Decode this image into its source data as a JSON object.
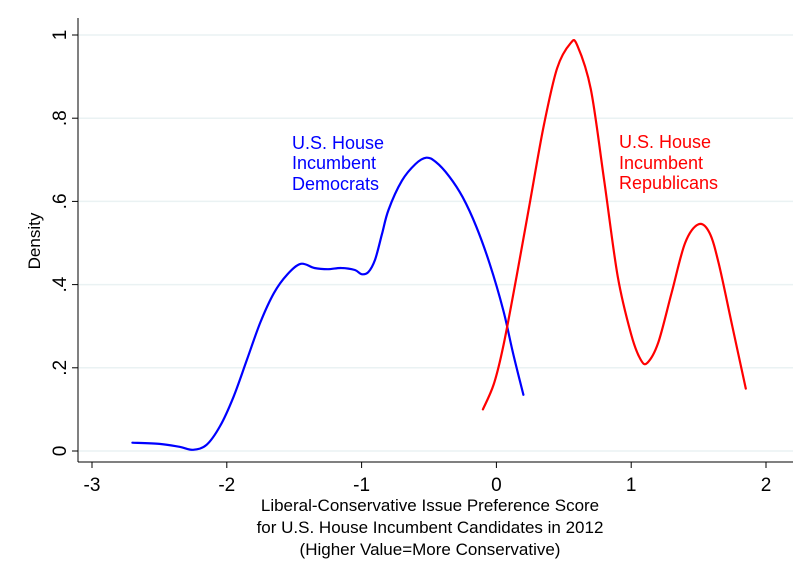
{
  "chart_data": {
    "type": "line",
    "title": "",
    "xlabel": [
      "Liberal-Conservative Issue Preference Score",
      "for U.S. House Incumbent Candidates in 2012",
      "(Higher Value=More Conservative)"
    ],
    "ylabel": "Density",
    "xlim": [
      -3,
      2
    ],
    "ylim": [
      0,
      1
    ],
    "x_ticks": [
      -3,
      -2,
      -1,
      0,
      1,
      2
    ],
    "x_tick_labels": [
      "-3",
      "-2",
      "-1",
      "0",
      "1",
      "2"
    ],
    "y_ticks": [
      0,
      0.2,
      0.4,
      0.6,
      0.8,
      1
    ],
    "y_tick_labels": [
      "0",
      ".2",
      ".4",
      ".6",
      ".8",
      "1"
    ],
    "grid": "horizontal",
    "series": [
      {
        "name": "U.S. House Incumbent Democrats",
        "label_lines": [
          "U.S. House",
          "Incumbent",
          "Democrats"
        ],
        "color": "#0000ff",
        "points": [
          [
            -2.7,
            0.02
          ],
          [
            -2.5,
            0.017
          ],
          [
            -2.35,
            0.01
          ],
          [
            -2.25,
            0.003
          ],
          [
            -2.15,
            0.015
          ],
          [
            -2.05,
            0.06
          ],
          [
            -1.95,
            0.13
          ],
          [
            -1.85,
            0.22
          ],
          [
            -1.75,
            0.31
          ],
          [
            -1.65,
            0.38
          ],
          [
            -1.55,
            0.425
          ],
          [
            -1.45,
            0.45
          ],
          [
            -1.35,
            0.44
          ],
          [
            -1.25,
            0.437
          ],
          [
            -1.15,
            0.44
          ],
          [
            -1.05,
            0.435
          ],
          [
            -1.0,
            0.425
          ],
          [
            -0.95,
            0.43
          ],
          [
            -0.9,
            0.46
          ],
          [
            -0.85,
            0.52
          ],
          [
            -0.8,
            0.58
          ],
          [
            -0.7,
            0.65
          ],
          [
            -0.6,
            0.69
          ],
          [
            -0.52,
            0.705
          ],
          [
            -0.45,
            0.695
          ],
          [
            -0.35,
            0.66
          ],
          [
            -0.25,
            0.61
          ],
          [
            -0.15,
            0.54
          ],
          [
            -0.05,
            0.45
          ],
          [
            0.05,
            0.34
          ],
          [
            0.12,
            0.24
          ],
          [
            0.2,
            0.135
          ]
        ]
      },
      {
        "name": "U.S. House Incumbent Republicans",
        "label_lines": [
          "U.S. House",
          "Incumbent",
          "Republicans"
        ],
        "color": "#ff0000",
        "points": [
          [
            -0.1,
            0.1
          ],
          [
            -0.02,
            0.16
          ],
          [
            0.05,
            0.25
          ],
          [
            0.15,
            0.42
          ],
          [
            0.25,
            0.6
          ],
          [
            0.35,
            0.78
          ],
          [
            0.45,
            0.92
          ],
          [
            0.55,
            0.98
          ],
          [
            0.6,
            0.975
          ],
          [
            0.7,
            0.87
          ],
          [
            0.8,
            0.65
          ],
          [
            0.9,
            0.42
          ],
          [
            1.0,
            0.28
          ],
          [
            1.07,
            0.22
          ],
          [
            1.12,
            0.212
          ],
          [
            1.2,
            0.26
          ],
          [
            1.3,
            0.38
          ],
          [
            1.4,
            0.5
          ],
          [
            1.5,
            0.545
          ],
          [
            1.58,
            0.525
          ],
          [
            1.65,
            0.45
          ],
          [
            1.75,
            0.3
          ],
          [
            1.85,
            0.15
          ]
        ]
      }
    ]
  }
}
